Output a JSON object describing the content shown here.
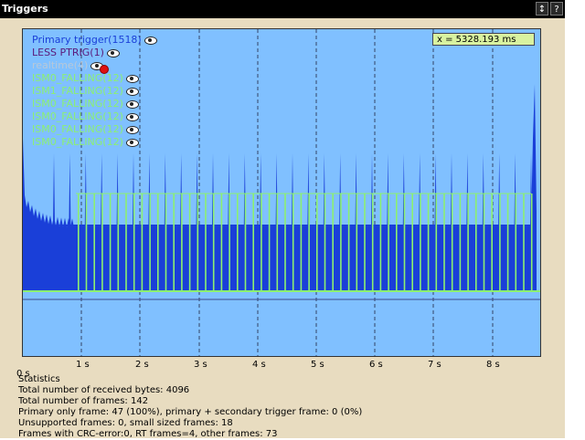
{
  "window": {
    "title": "Triggers",
    "buttons": [
      {
        "name": "sort-button",
        "glyph": "↕"
      },
      {
        "name": "help-button",
        "glyph": "?"
      }
    ]
  },
  "plot": {
    "readout": "x = 5328.193 ms",
    "legend": [
      {
        "label": "Primary trigger(1518)",
        "color": "#1a3fd8",
        "visible": true
      },
      {
        "label": "LESS PTRIG(1)",
        "color": "#5a1a7a",
        "visible": true
      },
      {
        "label": "realtime(4)",
        "color": "#b8c8d8",
        "visible": false
      },
      {
        "label": "ISM0_FALLING(12)",
        "color": "#8cf070",
        "visible": true
      },
      {
        "label": "ISM1_FALLING(12)",
        "color": "#8cf070",
        "visible": true
      },
      {
        "label": "ISM0_FALLING(12)",
        "color": "#8cf070",
        "visible": true
      },
      {
        "label": "ISM0_FALLING(12)",
        "color": "#8cf070",
        "visible": true
      },
      {
        "label": "ISM0_FALLING(12)",
        "color": "#8cf070",
        "visible": true
      },
      {
        "label": "ISM0_FALLING(12)",
        "color": "#8cf070",
        "visible": true
      }
    ],
    "x_ticks": [
      "1 s",
      "2 s",
      "3 s",
      "4 s",
      "5 s",
      "6 s",
      "7 s",
      "8 s"
    ],
    "x_origin_label": "0 s",
    "colors": {
      "background": "#80c0ff",
      "primary": "#1a3fd8",
      "secondary": "#8cf070",
      "baseline": "#3a4a8a"
    }
  },
  "stats": {
    "lines": [
      "Statistics",
      "Total number of received bytes: 4096",
      "Total number of frames: 142",
      "Primary only frame: 47 (100%), primary + secondary trigger frame: 0 (0%)",
      "Unsupported frames: 0, small sized frames: 18",
      "Frames with CRC-error:0, RT frames=4, other frames: 73"
    ]
  }
}
